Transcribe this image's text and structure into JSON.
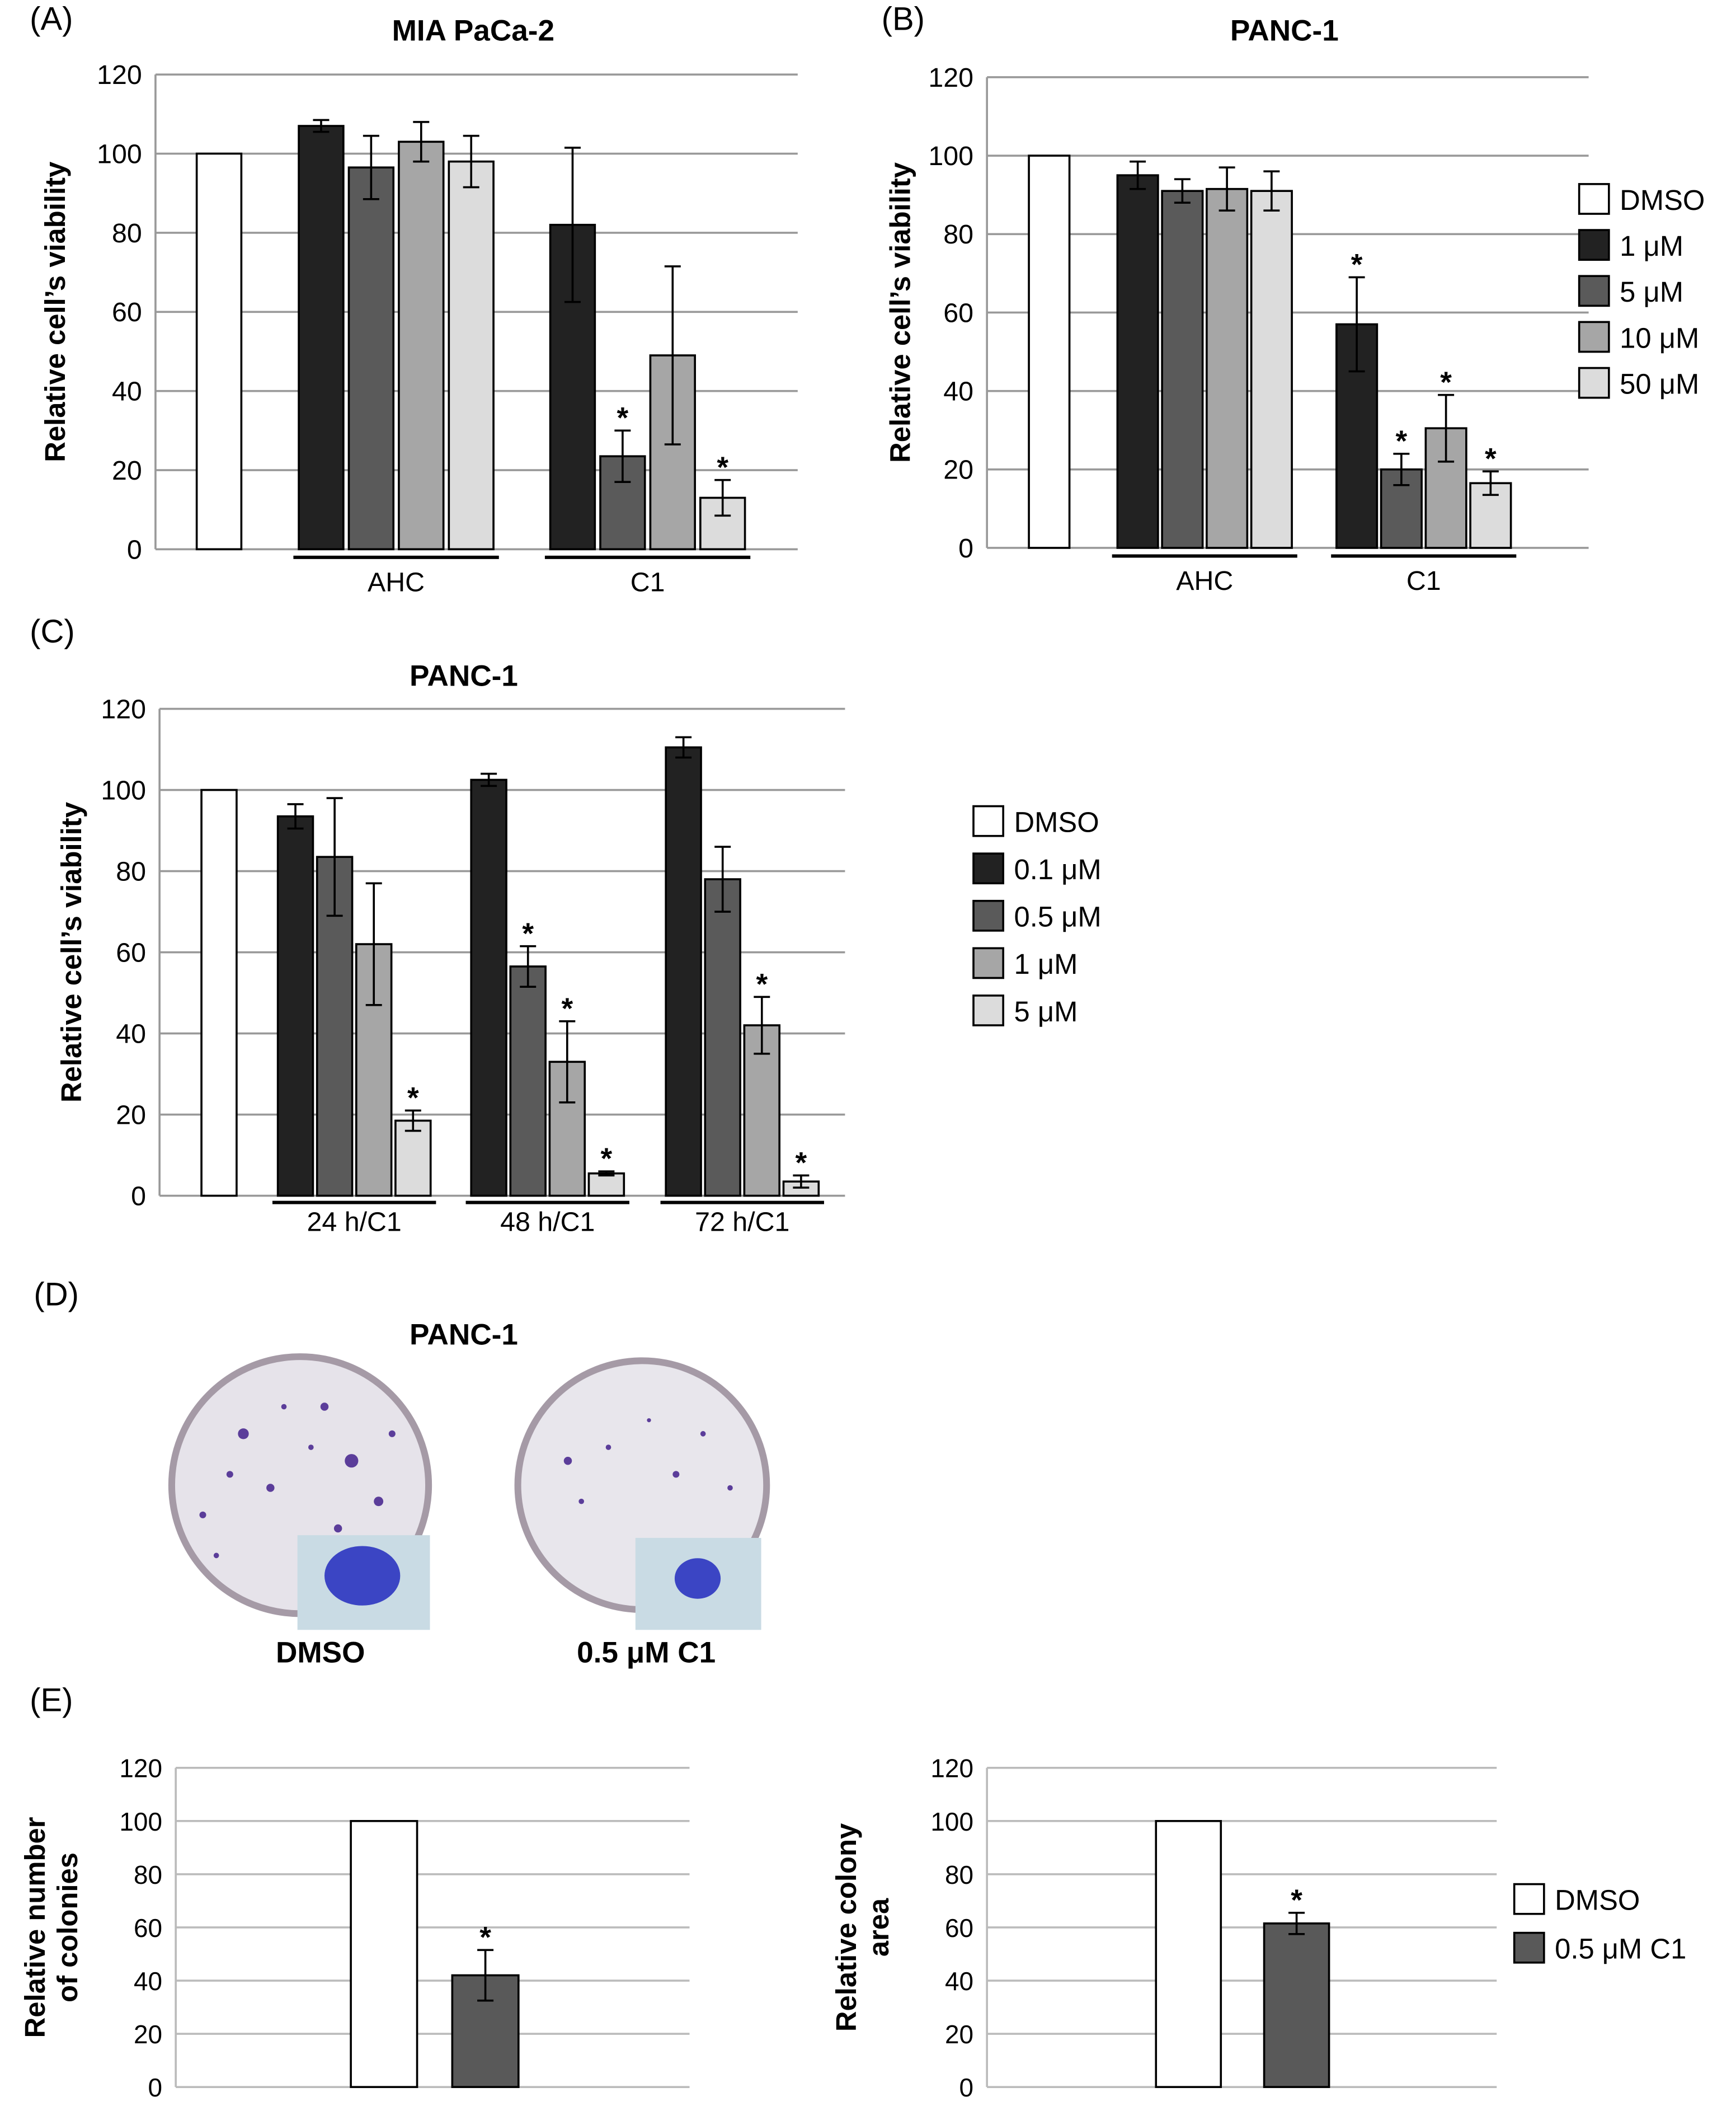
{
  "chart_data": [
    {
      "type": "bar",
      "panel_label": "(A)",
      "title": "MIA PaCa-2",
      "ylabel": "Relative cell’s viability",
      "categories": [
        null,
        "AHC",
        "C1"
      ],
      "ylim": [
        0,
        120
      ],
      "yticks": [
        0,
        20,
        40,
        60,
        80,
        100,
        120
      ],
      "grid": true,
      "legend": false,
      "series": [
        {
          "name": "DMSO",
          "color": "#ffffff",
          "values": [
            100,
            null,
            null
          ],
          "errors": [
            null,
            null,
            null
          ],
          "significance": [
            null,
            null,
            null
          ]
        },
        {
          "name": "1 μM",
          "color": "#222222",
          "values": [
            null,
            107,
            82
          ],
          "errors": [
            null,
            1.5,
            19.5
          ],
          "significance": [
            null,
            null,
            null
          ]
        },
        {
          "name": "5 μM",
          "color": "#5a5a5a",
          "values": [
            null,
            96.5,
            23.5
          ],
          "errors": [
            null,
            8,
            6.5
          ],
          "significance": [
            null,
            null,
            "*"
          ]
        },
        {
          "name": "10 μM",
          "color": "#a6a6a6",
          "values": [
            null,
            103,
            49
          ],
          "errors": [
            null,
            5,
            22.5
          ],
          "significance": [
            null,
            null,
            null
          ]
        },
        {
          "name": "50 μM",
          "color": "#dcdcdc",
          "values": [
            null,
            98,
            13
          ],
          "errors": [
            null,
            6.5,
            4.5
          ],
          "significance": [
            null,
            null,
            "*"
          ]
        }
      ]
    },
    {
      "type": "bar",
      "panel_label": "(B)",
      "title": "PANC-1",
      "ylabel": "Relative cell’s viability",
      "categories": [
        null,
        "AHC",
        "C1"
      ],
      "ylim": [
        0,
        120
      ],
      "yticks": [
        0,
        20,
        40,
        60,
        80,
        100,
        120
      ],
      "grid": true,
      "legend": true,
      "series": [
        {
          "name": "DMSO",
          "color": "#ffffff",
          "values": [
            100,
            null,
            null
          ],
          "errors": [
            null,
            null,
            null
          ],
          "significance": [
            null,
            null,
            null
          ]
        },
        {
          "name": "1 μM",
          "color": "#222222",
          "values": [
            null,
            95,
            57
          ],
          "errors": [
            null,
            3.5,
            12
          ],
          "significance": [
            null,
            null,
            "*"
          ]
        },
        {
          "name": "5 μM",
          "color": "#5a5a5a",
          "values": [
            null,
            91,
            20
          ],
          "errors": [
            null,
            3,
            4
          ],
          "significance": [
            null,
            null,
            "*"
          ]
        },
        {
          "name": "10 μM",
          "color": "#a6a6a6",
          "values": [
            null,
            91.5,
            30.5
          ],
          "errors": [
            null,
            5.5,
            8.5
          ],
          "significance": [
            null,
            null,
            "*"
          ]
        },
        {
          "name": "50 μM",
          "color": "#dcdcdc",
          "values": [
            null,
            91,
            16.5
          ],
          "errors": [
            null,
            5,
            3
          ],
          "significance": [
            null,
            null,
            "*"
          ]
        }
      ]
    },
    {
      "type": "bar",
      "panel_label": "(C)",
      "title": "PANC-1",
      "ylabel": "Relative cell’s viability",
      "categories": [
        null,
        "24 h/C1",
        "48 h/C1",
        "72 h/C1"
      ],
      "ylim": [
        0,
        120
      ],
      "yticks": [
        0,
        20,
        40,
        60,
        80,
        100,
        120
      ],
      "grid": true,
      "legend": true,
      "series": [
        {
          "name": "DMSO",
          "color": "#ffffff",
          "values": [
            100,
            null,
            null,
            null
          ],
          "errors": [
            null,
            null,
            null,
            null
          ],
          "significance": [
            null,
            null,
            null,
            null
          ]
        },
        {
          "name": "0.1 μM",
          "color": "#222222",
          "values": [
            null,
            93.5,
            102.5,
            110.5
          ],
          "errors": [
            null,
            3,
            1.5,
            2.5
          ],
          "significance": [
            null,
            null,
            null,
            null
          ]
        },
        {
          "name": "0.5 μM",
          "color": "#5a5a5a",
          "values": [
            null,
            83.5,
            56.5,
            78
          ],
          "errors": [
            null,
            14.5,
            5,
            8
          ],
          "significance": [
            null,
            null,
            "*",
            null
          ]
        },
        {
          "name": "1 μM",
          "color": "#a6a6a6",
          "values": [
            null,
            62,
            33,
            42
          ],
          "errors": [
            null,
            15,
            10,
            7
          ],
          "significance": [
            null,
            null,
            "*",
            "*"
          ]
        },
        {
          "name": "5 μM",
          "color": "#dcdcdc",
          "values": [
            null,
            18.5,
            5.5,
            3.5
          ],
          "errors": [
            null,
            2.5,
            0.5,
            1.5
          ],
          "significance": [
            null,
            "*",
            "*",
            "*"
          ]
        }
      ]
    },
    {
      "type": "bar",
      "panel_label": "(E)",
      "ylabel": [
        "Relative number",
        "of colonies"
      ],
      "categories": [
        null,
        null
      ],
      "ylim": [
        0,
        120
      ],
      "yticks": [
        0,
        20,
        40,
        60,
        80,
        100,
        120
      ],
      "grid": true,
      "legend": false,
      "series": [
        {
          "name": "DMSO",
          "color": "#ffffff",
          "values": [
            100,
            null
          ],
          "errors": [
            null,
            null
          ],
          "significance": [
            null,
            null
          ]
        },
        {
          "name": "0.5 μM C1",
          "color": "#595959",
          "values": [
            null,
            42
          ],
          "errors": [
            null,
            9.5
          ],
          "significance": [
            null,
            "*"
          ]
        }
      ]
    },
    {
      "type": "bar",
      "ylabel": [
        "Relative colony",
        "area"
      ],
      "categories": [
        null,
        null
      ],
      "ylim": [
        0,
        120
      ],
      "yticks": [
        0,
        20,
        40,
        60,
        80,
        100,
        120
      ],
      "grid": true,
      "legend": true,
      "series": [
        {
          "name": "DMSO",
          "color": "#ffffff",
          "values": [
            100,
            null
          ],
          "errors": [
            null,
            null
          ],
          "significance": [
            null,
            null
          ]
        },
        {
          "name": "0.5 μM C1",
          "color": "#595959",
          "values": [
            null,
            61.5
          ],
          "errors": [
            null,
            4
          ],
          "significance": [
            null,
            "*"
          ]
        }
      ]
    }
  ],
  "panel_d": {
    "panel_label": "(D)",
    "title": "PANC-1",
    "labels": [
      "DMSO",
      "0.5 μM C1"
    ]
  }
}
